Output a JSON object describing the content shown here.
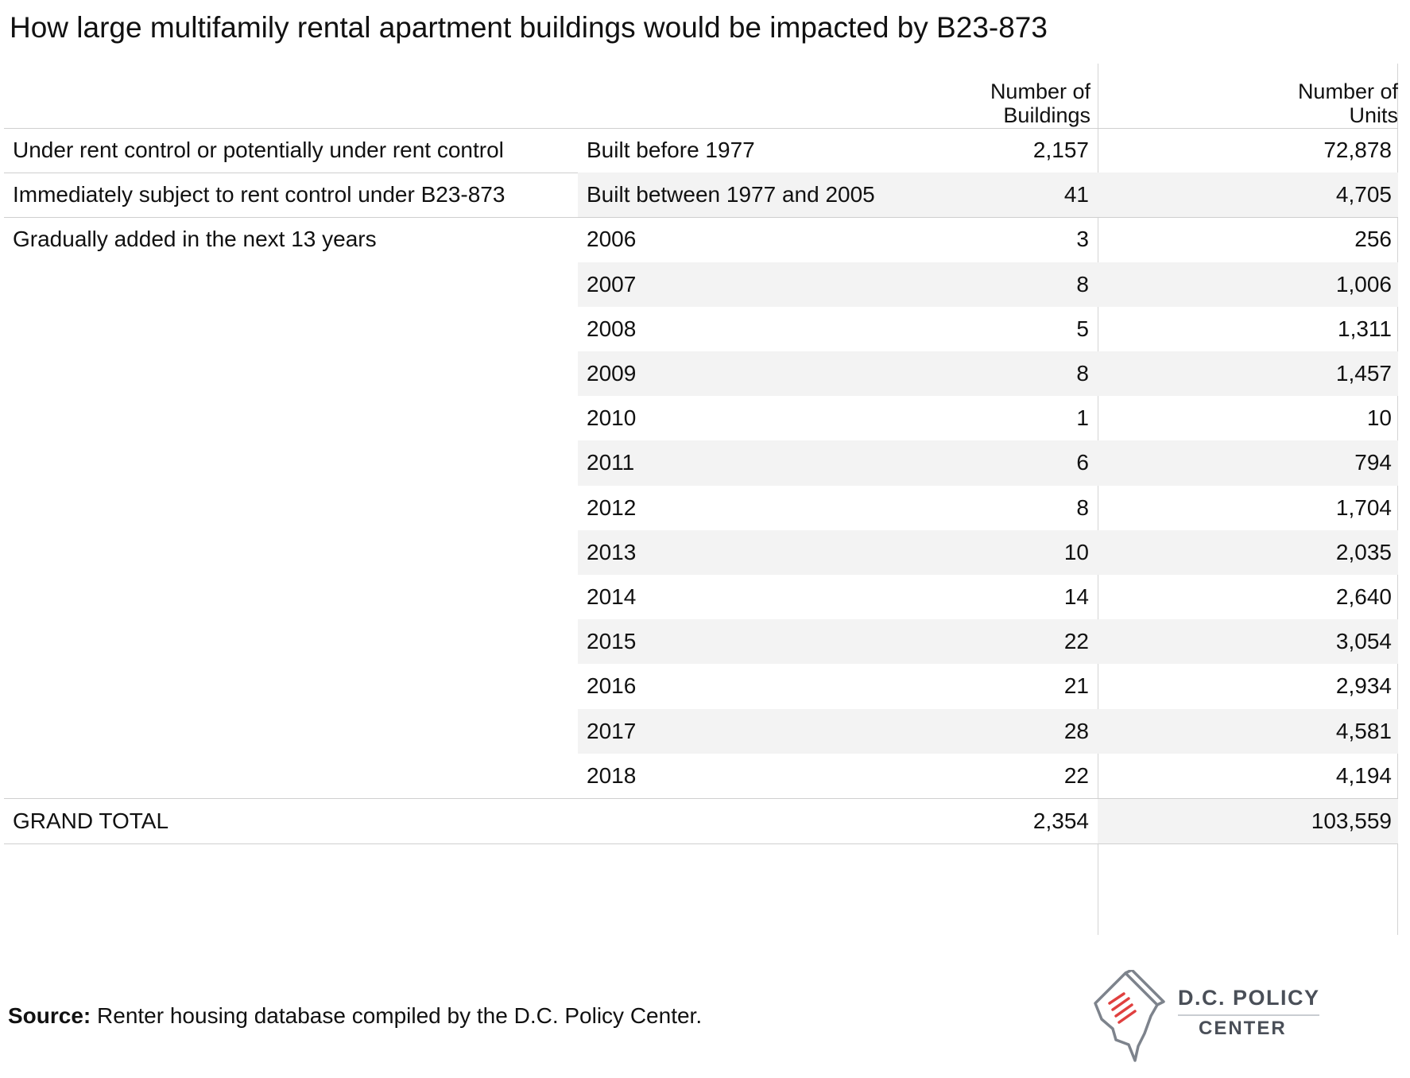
{
  "title": "How large multifamily rental apartment buildings would be impacted by B23-873",
  "headers": {
    "buildings": "Number of\nBuildings",
    "units": "Number of\nUnits"
  },
  "chart_data": {
    "type": "table",
    "columns": [
      "",
      "",
      "Number of Buildings",
      "Number of Units"
    ],
    "rows": [
      {
        "group": "Under rent control or potentially under rent control",
        "sub": "Built before 1977",
        "buildings": "2,157",
        "units": "72,878"
      },
      {
        "group": "Immediately subject to rent control under B23-873",
        "sub": "Built between 1977 and 2005",
        "buildings": "41",
        "units": "4,705"
      },
      {
        "group": "Gradually added in the next 13 years",
        "sub": "2006",
        "buildings": "3",
        "units": "256"
      },
      {
        "group": "",
        "sub": "2007",
        "buildings": "8",
        "units": "1,006"
      },
      {
        "group": "",
        "sub": "2008",
        "buildings": "5",
        "units": "1,311"
      },
      {
        "group": "",
        "sub": "2009",
        "buildings": "8",
        "units": "1,457"
      },
      {
        "group": "",
        "sub": "2010",
        "buildings": "1",
        "units": "10"
      },
      {
        "group": "",
        "sub": "2011",
        "buildings": "6",
        "units": "794"
      },
      {
        "group": "",
        "sub": "2012",
        "buildings": "8",
        "units": "1,704"
      },
      {
        "group": "",
        "sub": "2013",
        "buildings": "10",
        "units": "2,035"
      },
      {
        "group": "",
        "sub": "2014",
        "buildings": "14",
        "units": "2,640"
      },
      {
        "group": "",
        "sub": "2015",
        "buildings": "22",
        "units": "3,054"
      },
      {
        "group": "",
        "sub": "2016",
        "buildings": "21",
        "units": "2,934"
      },
      {
        "group": "",
        "sub": "2017",
        "buildings": "28",
        "units": "4,581"
      },
      {
        "group": "",
        "sub": "2018",
        "buildings": "22",
        "units": "4,194"
      }
    ],
    "total": {
      "label": "GRAND TOTAL",
      "buildings": "2,354",
      "units": "103,559"
    }
  },
  "source": {
    "label": "Source:",
    "text": " Renter housing database compiled by the D.C. Policy Center."
  },
  "logo": {
    "line1": "D.C. POLICY",
    "line2": "CENTER",
    "icon": "dc-map-pencil-icon",
    "colors": {
      "outline": "#7d838c",
      "stripes": "#e0403f"
    }
  }
}
